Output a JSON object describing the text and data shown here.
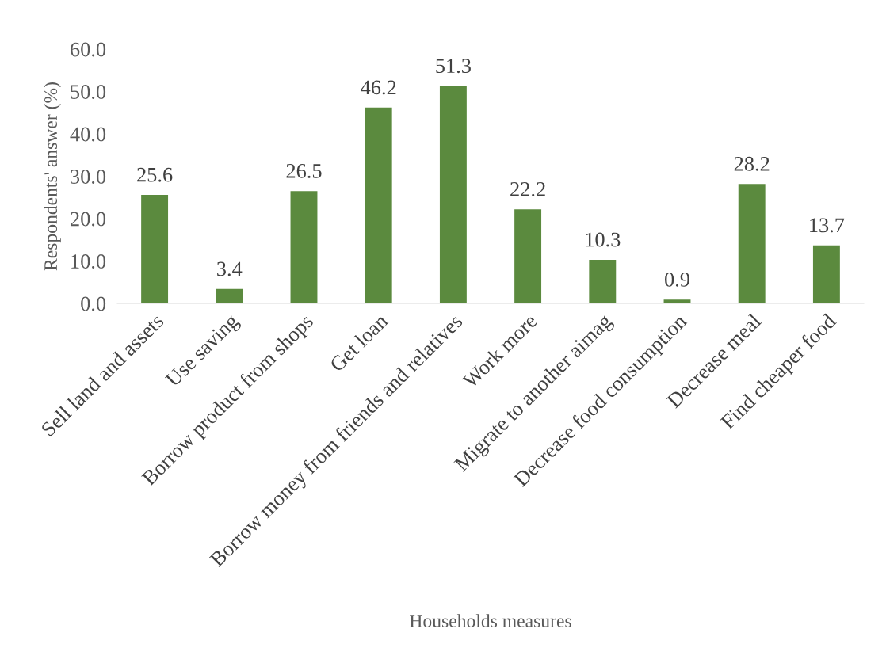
{
  "chart_data": {
    "type": "bar",
    "xlabel": "Households measures",
    "ylabel": "Respondents' answer (%)",
    "categories": [
      "Sell land and assets",
      "Use saving",
      "Borrow product from shops",
      "Get loan",
      "Borrow money from friends and relatives",
      "Work more",
      "Migrate to another aimag",
      "Decrease food consumption",
      "Decrease meal",
      "Find cheaper food"
    ],
    "values": [
      25.6,
      3.4,
      26.5,
      46.2,
      51.3,
      22.2,
      10.3,
      0.9,
      28.2,
      13.7
    ],
    "color": "#5b8a3e",
    "ylim": [
      0,
      60
    ],
    "yticks": [
      {
        "value": 0,
        "label": "0.0"
      },
      {
        "value": 10,
        "label": "10.0"
      },
      {
        "value": 20,
        "label": "20.0"
      },
      {
        "value": 30,
        "label": "30.0"
      },
      {
        "value": 40,
        "label": "40.0"
      },
      {
        "value": 50,
        "label": "50.0"
      },
      {
        "value": 60,
        "label": "60.0"
      }
    ],
    "data_labels": true,
    "grid": false,
    "legend": false
  }
}
